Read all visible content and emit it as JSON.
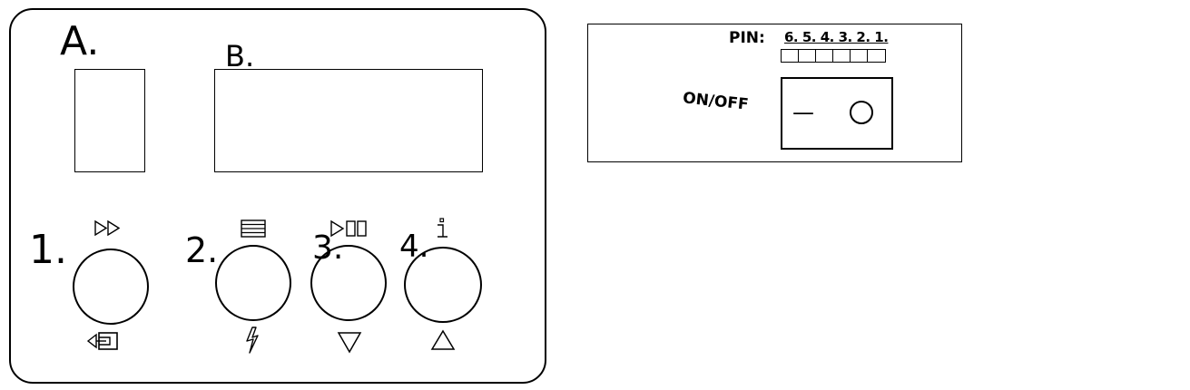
{
  "front_panel": {
    "label_a": "A.",
    "label_b": "B.",
    "buttons": [
      {
        "number": "1.",
        "top_icon": "fast-forward-icon",
        "bottom_icon": "enter-icon"
      },
      {
        "number": "2.",
        "top_icon": "menu-lines-icon",
        "bottom_icon": "lightning-icon"
      },
      {
        "number": "3.",
        "top_icon": "play-pause-icon",
        "bottom_icon": "down-triangle-icon"
      },
      {
        "number": "4.",
        "top_icon": "info-icon",
        "bottom_icon": "up-triangle-icon"
      }
    ]
  },
  "rear_panel": {
    "pin_label": "PIN:",
    "pin_numbers": "6. 5. 4. 3. 2. 1.",
    "pin_count": 6,
    "switch_label": "ON/OFF",
    "switch_off_symbol": "—",
    "switch_on_symbol": "○"
  }
}
